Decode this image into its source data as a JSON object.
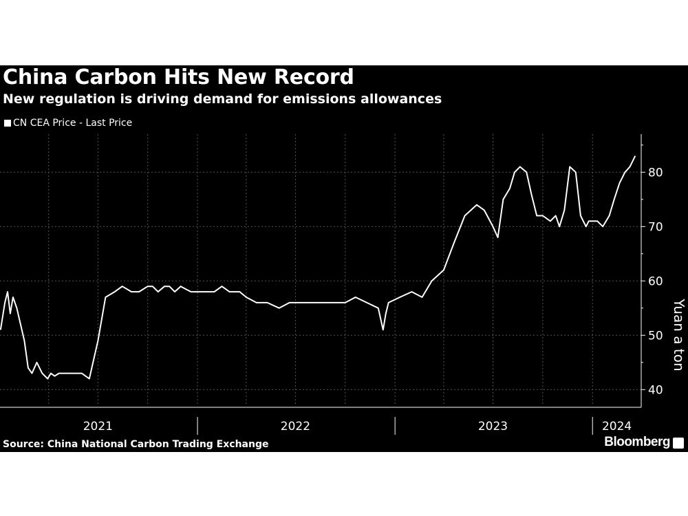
{
  "header": {
    "title": "China Carbon Hits New Record",
    "subtitle": "New regulation is driving demand for emissions allowances"
  },
  "footer": {
    "source": "Source: China National Carbon Trading Exchange",
    "brand": "Bloomberg"
  },
  "colors": {
    "background": "#000000",
    "line": "#ffffff",
    "grid": "#555555",
    "text": "#ffffff"
  },
  "chart_data": {
    "type": "line",
    "title": "China Carbon Hits New Record",
    "subtitle": "New regulation is driving demand for emissions allowances",
    "xlabel": "",
    "ylabel": "Yuan a ton",
    "ylim": [
      37,
      87
    ],
    "xlim": [
      "2021-01-01",
      "2024-03-31"
    ],
    "yticks": [
      40,
      50,
      60,
      70,
      80
    ],
    "xticks": [
      {
        "label": "2021",
        "date": "2021-07-01"
      },
      {
        "label": "2022",
        "date": "2022-07-01"
      },
      {
        "label": "2023",
        "date": "2023-07-01"
      },
      {
        "label": "2024",
        "date": "2024-02-15"
      }
    ],
    "year_boundaries": [
      "2022-01-01",
      "2023-01-01",
      "2024-01-01"
    ],
    "grid": true,
    "legend": "top-left",
    "series": [
      {
        "name": "CN CEA Price - Last Price",
        "x": [
          "2021-01-02",
          "2021-01-10",
          "2021-01-15",
          "2021-01-20",
          "2021-01-25",
          "2021-02-01",
          "2021-02-08",
          "2021-02-15",
          "2021-02-22",
          "2021-03-01",
          "2021-03-10",
          "2021-03-20",
          "2021-03-30",
          "2021-04-05",
          "2021-04-12",
          "2021-04-20",
          "2021-05-01",
          "2021-05-10",
          "2021-05-20",
          "2021-06-01",
          "2021-06-15",
          "2021-07-01",
          "2021-07-15",
          "2021-08-01",
          "2021-08-15",
          "2021-09-01",
          "2021-09-15",
          "2021-10-01",
          "2021-10-10",
          "2021-10-20",
          "2021-11-01",
          "2021-11-10",
          "2021-11-20",
          "2021-12-01",
          "2021-12-10",
          "2021-12-20",
          "2022-01-01",
          "2022-01-15",
          "2022-02-01",
          "2022-02-15",
          "2022-03-01",
          "2022-03-20",
          "2022-04-01",
          "2022-04-20",
          "2022-05-10",
          "2022-06-01",
          "2022-06-20",
          "2022-07-10",
          "2022-08-01",
          "2022-08-20",
          "2022-09-10",
          "2022-10-01",
          "2022-10-20",
          "2022-11-10",
          "2022-12-01",
          "2022-12-10",
          "2022-12-15",
          "2022-12-20",
          "2023-01-10",
          "2023-02-01",
          "2023-02-20",
          "2023-03-10",
          "2023-04-01",
          "2023-04-20",
          "2023-05-10",
          "2023-06-01",
          "2023-06-15",
          "2023-07-01",
          "2023-07-10",
          "2023-07-20",
          "2023-08-01",
          "2023-08-10",
          "2023-08-20",
          "2023-09-01",
          "2023-09-10",
          "2023-09-20",
          "2023-10-01",
          "2023-10-15",
          "2023-10-25",
          "2023-11-01",
          "2023-11-10",
          "2023-11-20",
          "2023-12-01",
          "2023-12-10",
          "2023-12-15",
          "2023-12-20",
          "2023-12-25",
          "2024-01-01",
          "2024-01-10",
          "2024-01-20",
          "2024-02-01",
          "2024-02-10",
          "2024-02-20",
          "2024-03-01",
          "2024-03-10",
          "2024-03-20"
        ],
        "values": [
          51,
          56,
          58,
          54,
          57,
          55,
          52,
          49,
          44,
          43,
          45,
          43,
          42,
          43,
          42.5,
          43,
          43,
          43,
          43,
          43,
          42,
          49,
          57,
          58,
          59,
          58,
          58,
          59,
          59,
          58,
          59,
          59,
          58,
          59,
          58.5,
          58,
          58,
          58,
          58,
          59,
          58,
          58,
          57,
          56,
          56,
          55,
          56,
          56,
          56,
          56,
          56,
          56,
          57,
          56,
          55,
          51,
          54,
          56,
          57,
          58,
          57,
          60,
          62,
          67,
          72,
          74,
          73,
          70,
          68,
          75,
          77,
          80,
          81,
          80,
          76,
          72,
          72,
          71,
          72,
          70,
          73,
          81,
          80,
          72,
          71,
          70,
          71,
          71,
          71,
          70,
          72,
          75,
          78,
          80,
          81,
          83
        ]
      }
    ]
  }
}
